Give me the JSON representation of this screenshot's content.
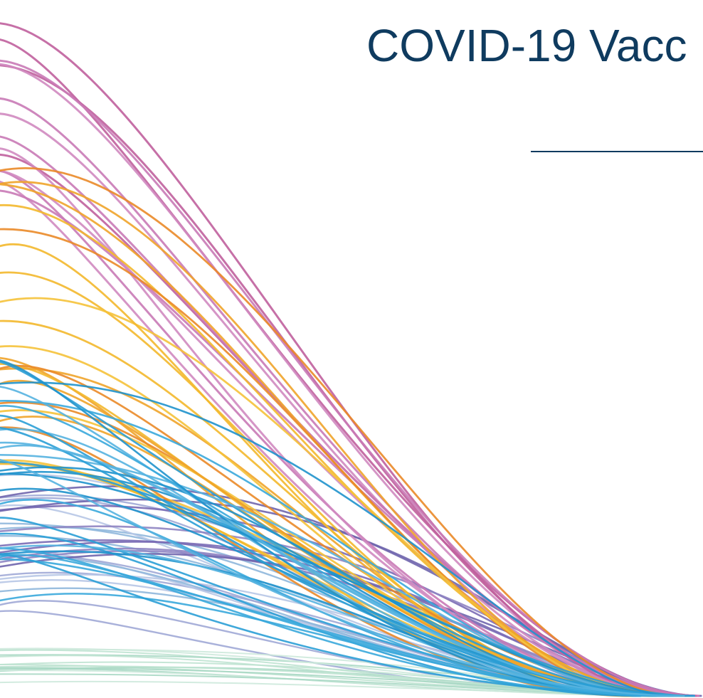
{
  "header": {
    "title": "COVID-19 Vacc"
  }
}
